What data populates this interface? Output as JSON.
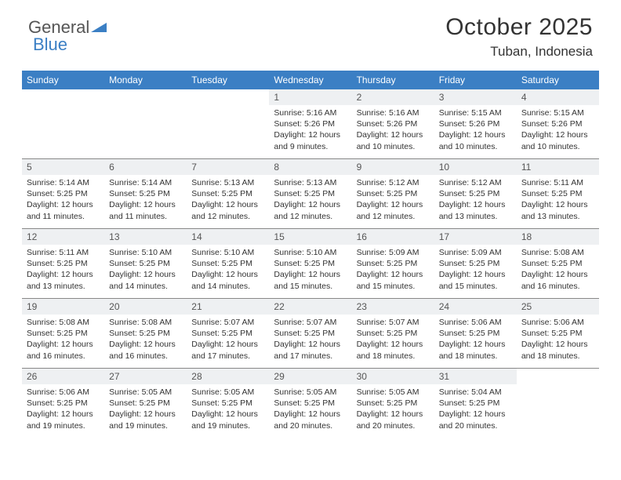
{
  "logo": {
    "text1": "General",
    "text2": "Blue"
  },
  "header": {
    "title": "October 2025",
    "location": "Tuban, Indonesia"
  },
  "colors": {
    "header_bar": "#3b7fc4",
    "daynum_bg": "#eef0f2",
    "divider": "#888888",
    "text": "#333333",
    "background": "#ffffff"
  },
  "daynames": [
    "Sunday",
    "Monday",
    "Tuesday",
    "Wednesday",
    "Thursday",
    "Friday",
    "Saturday"
  ],
  "weeks": [
    [
      {
        "n": "",
        "empty": true
      },
      {
        "n": "",
        "empty": true
      },
      {
        "n": "",
        "empty": true
      },
      {
        "n": "1",
        "sr": "Sunrise: 5:16 AM",
        "ss": "Sunset: 5:26 PM",
        "dl": "Daylight: 12 hours and 9 minutes."
      },
      {
        "n": "2",
        "sr": "Sunrise: 5:16 AM",
        "ss": "Sunset: 5:26 PM",
        "dl": "Daylight: 12 hours and 10 minutes."
      },
      {
        "n": "3",
        "sr": "Sunrise: 5:15 AM",
        "ss": "Sunset: 5:26 PM",
        "dl": "Daylight: 12 hours and 10 minutes."
      },
      {
        "n": "4",
        "sr": "Sunrise: 5:15 AM",
        "ss": "Sunset: 5:26 PM",
        "dl": "Daylight: 12 hours and 10 minutes."
      }
    ],
    [
      {
        "n": "5",
        "sr": "Sunrise: 5:14 AM",
        "ss": "Sunset: 5:25 PM",
        "dl": "Daylight: 12 hours and 11 minutes."
      },
      {
        "n": "6",
        "sr": "Sunrise: 5:14 AM",
        "ss": "Sunset: 5:25 PM",
        "dl": "Daylight: 12 hours and 11 minutes."
      },
      {
        "n": "7",
        "sr": "Sunrise: 5:13 AM",
        "ss": "Sunset: 5:25 PM",
        "dl": "Daylight: 12 hours and 12 minutes."
      },
      {
        "n": "8",
        "sr": "Sunrise: 5:13 AM",
        "ss": "Sunset: 5:25 PM",
        "dl": "Daylight: 12 hours and 12 minutes."
      },
      {
        "n": "9",
        "sr": "Sunrise: 5:12 AM",
        "ss": "Sunset: 5:25 PM",
        "dl": "Daylight: 12 hours and 12 minutes."
      },
      {
        "n": "10",
        "sr": "Sunrise: 5:12 AM",
        "ss": "Sunset: 5:25 PM",
        "dl": "Daylight: 12 hours and 13 minutes."
      },
      {
        "n": "11",
        "sr": "Sunrise: 5:11 AM",
        "ss": "Sunset: 5:25 PM",
        "dl": "Daylight: 12 hours and 13 minutes."
      }
    ],
    [
      {
        "n": "12",
        "sr": "Sunrise: 5:11 AM",
        "ss": "Sunset: 5:25 PM",
        "dl": "Daylight: 12 hours and 13 minutes."
      },
      {
        "n": "13",
        "sr": "Sunrise: 5:10 AM",
        "ss": "Sunset: 5:25 PM",
        "dl": "Daylight: 12 hours and 14 minutes."
      },
      {
        "n": "14",
        "sr": "Sunrise: 5:10 AM",
        "ss": "Sunset: 5:25 PM",
        "dl": "Daylight: 12 hours and 14 minutes."
      },
      {
        "n": "15",
        "sr": "Sunrise: 5:10 AM",
        "ss": "Sunset: 5:25 PM",
        "dl": "Daylight: 12 hours and 15 minutes."
      },
      {
        "n": "16",
        "sr": "Sunrise: 5:09 AM",
        "ss": "Sunset: 5:25 PM",
        "dl": "Daylight: 12 hours and 15 minutes."
      },
      {
        "n": "17",
        "sr": "Sunrise: 5:09 AM",
        "ss": "Sunset: 5:25 PM",
        "dl": "Daylight: 12 hours and 15 minutes."
      },
      {
        "n": "18",
        "sr": "Sunrise: 5:08 AM",
        "ss": "Sunset: 5:25 PM",
        "dl": "Daylight: 12 hours and 16 minutes."
      }
    ],
    [
      {
        "n": "19",
        "sr": "Sunrise: 5:08 AM",
        "ss": "Sunset: 5:25 PM",
        "dl": "Daylight: 12 hours and 16 minutes."
      },
      {
        "n": "20",
        "sr": "Sunrise: 5:08 AM",
        "ss": "Sunset: 5:25 PM",
        "dl": "Daylight: 12 hours and 16 minutes."
      },
      {
        "n": "21",
        "sr": "Sunrise: 5:07 AM",
        "ss": "Sunset: 5:25 PM",
        "dl": "Daylight: 12 hours and 17 minutes."
      },
      {
        "n": "22",
        "sr": "Sunrise: 5:07 AM",
        "ss": "Sunset: 5:25 PM",
        "dl": "Daylight: 12 hours and 17 minutes."
      },
      {
        "n": "23",
        "sr": "Sunrise: 5:07 AM",
        "ss": "Sunset: 5:25 PM",
        "dl": "Daylight: 12 hours and 18 minutes."
      },
      {
        "n": "24",
        "sr": "Sunrise: 5:06 AM",
        "ss": "Sunset: 5:25 PM",
        "dl": "Daylight: 12 hours and 18 minutes."
      },
      {
        "n": "25",
        "sr": "Sunrise: 5:06 AM",
        "ss": "Sunset: 5:25 PM",
        "dl": "Daylight: 12 hours and 18 minutes."
      }
    ],
    [
      {
        "n": "26",
        "sr": "Sunrise: 5:06 AM",
        "ss": "Sunset: 5:25 PM",
        "dl": "Daylight: 12 hours and 19 minutes."
      },
      {
        "n": "27",
        "sr": "Sunrise: 5:05 AM",
        "ss": "Sunset: 5:25 PM",
        "dl": "Daylight: 12 hours and 19 minutes."
      },
      {
        "n": "28",
        "sr": "Sunrise: 5:05 AM",
        "ss": "Sunset: 5:25 PM",
        "dl": "Daylight: 12 hours and 19 minutes."
      },
      {
        "n": "29",
        "sr": "Sunrise: 5:05 AM",
        "ss": "Sunset: 5:25 PM",
        "dl": "Daylight: 12 hours and 20 minutes."
      },
      {
        "n": "30",
        "sr": "Sunrise: 5:05 AM",
        "ss": "Sunset: 5:25 PM",
        "dl": "Daylight: 12 hours and 20 minutes."
      },
      {
        "n": "31",
        "sr": "Sunrise: 5:04 AM",
        "ss": "Sunset: 5:25 PM",
        "dl": "Daylight: 12 hours and 20 minutes."
      },
      {
        "n": "",
        "empty": true
      }
    ]
  ]
}
